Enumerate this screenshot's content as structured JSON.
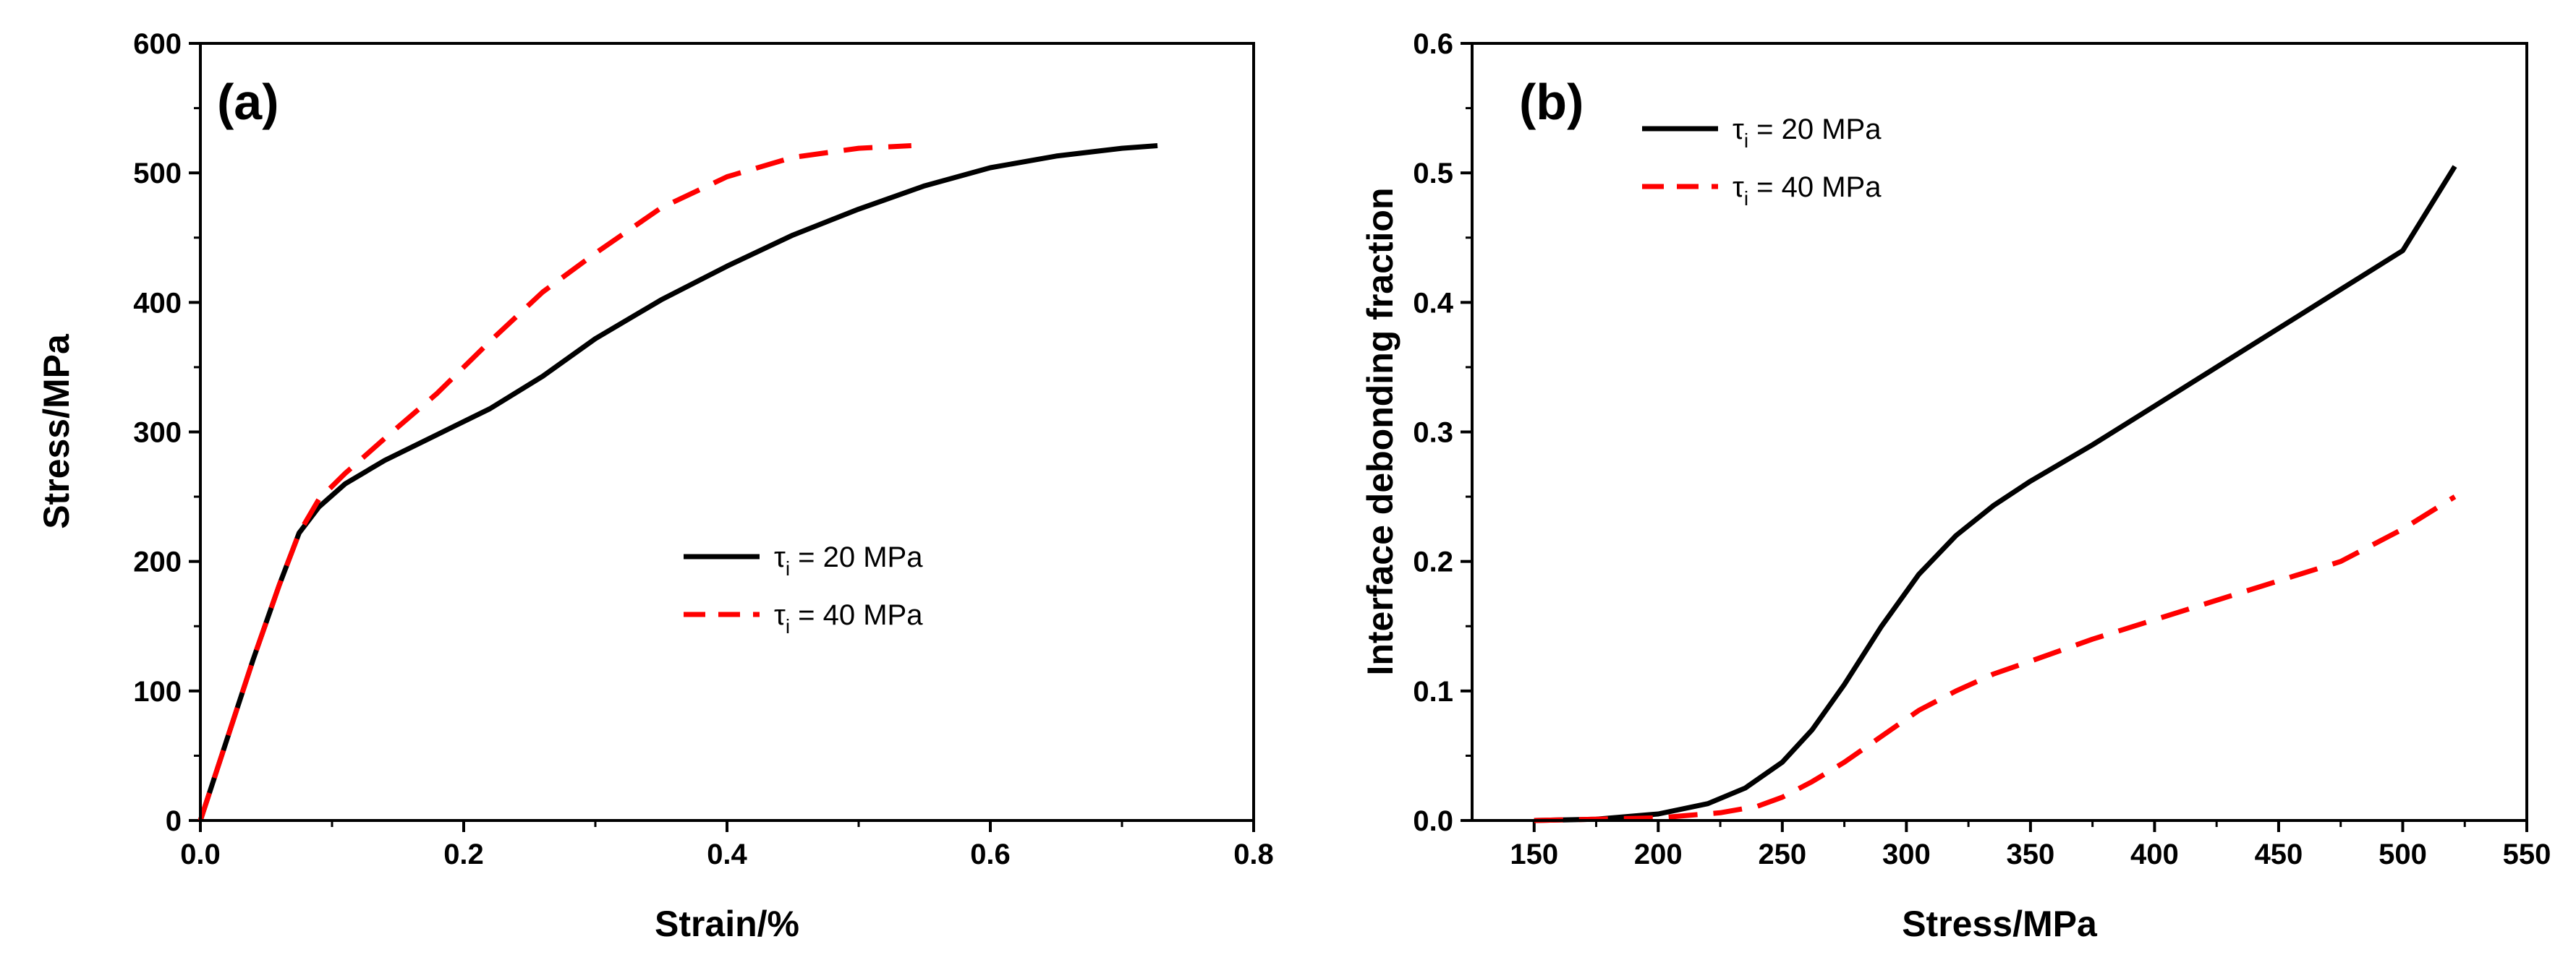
{
  "chart_data": [
    {
      "type": "line",
      "panel_label": "(a)",
      "title": "",
      "xlabel": "Strain/%",
      "ylabel": "Stress/MPa",
      "xlim": [
        0,
        0.8
      ],
      "ylim": [
        0,
        600
      ],
      "x_ticks": [
        0.0,
        0.2,
        0.4,
        0.6,
        0.8
      ],
      "x_tick_labels": [
        "0.0",
        "0.2",
        "0.4",
        "0.6",
        "0.8"
      ],
      "y_ticks": [
        0,
        100,
        200,
        300,
        400,
        500,
        600
      ],
      "y_tick_labels": [
        "0",
        "100",
        "200",
        "300",
        "400",
        "500",
        "600"
      ],
      "legend_position": "center-right",
      "series": [
        {
          "name": "τi = 20 MPa",
          "legend_symbol": "τ",
          "legend_sub": "i",
          "legend_rest": " = 20 MPa",
          "color": "#000000",
          "dash": "solid",
          "x": [
            0,
            0.02,
            0.04,
            0.06,
            0.075,
            0.09,
            0.11,
            0.14,
            0.18,
            0.22,
            0.26,
            0.3,
            0.35,
            0.4,
            0.45,
            0.5,
            0.55,
            0.6,
            0.65,
            0.7,
            0.727
          ],
          "y": [
            0,
            62,
            124,
            182,
            222,
            242,
            260,
            278,
            298,
            318,
            343,
            372,
            402,
            428,
            452,
            472,
            490,
            504,
            513,
            519,
            521
          ]
        },
        {
          "name": "τi = 40 MPa",
          "legend_symbol": "τ",
          "legend_sub": "i",
          "legend_rest": " = 40 MPa",
          "color": "#ff0000",
          "dash": "dashed",
          "x": [
            0,
            0.02,
            0.04,
            0.06,
            0.075,
            0.09,
            0.11,
            0.14,
            0.18,
            0.22,
            0.26,
            0.3,
            0.35,
            0.4,
            0.45,
            0.5,
            0.54
          ],
          "y": [
            0,
            62,
            124,
            182,
            222,
            248,
            268,
            295,
            330,
            370,
            408,
            438,
            473,
            497,
            512,
            519,
            521
          ]
        }
      ]
    },
    {
      "type": "line",
      "panel_label": "(b)",
      "title": "",
      "xlabel": "Stress/MPa",
      "ylabel": "Interface debonding fraction",
      "xlim": [
        125,
        550
      ],
      "ylim": [
        0,
        0.6
      ],
      "x_ticks": [
        150,
        200,
        250,
        300,
        350,
        400,
        450,
        500,
        550
      ],
      "x_tick_labels": [
        "150",
        "200",
        "250",
        "300",
        "350",
        "400",
        "450",
        "500",
        "550"
      ],
      "y_ticks": [
        0,
        0.1,
        0.2,
        0.3,
        0.4,
        0.5,
        0.6
      ],
      "y_tick_labels": [
        "0.0",
        "0.1",
        "0.2",
        "0.3",
        "0.4",
        "0.5",
        "0.6"
      ],
      "legend_position": "top-left",
      "series": [
        {
          "name": "τi = 20 MPa",
          "legend_symbol": "τ",
          "legend_sub": "i",
          "legend_rest": " = 20 MPa",
          "color": "#000000",
          "dash": "solid",
          "x": [
            150,
            175,
            200,
            220,
            235,
            250,
            262,
            275,
            290,
            305,
            320,
            335,
            350,
            375,
            400,
            425,
            450,
            475,
            500,
            521
          ],
          "y": [
            0,
            0.001,
            0.005,
            0.013,
            0.025,
            0.045,
            0.07,
            0.105,
            0.15,
            0.19,
            0.22,
            0.243,
            0.262,
            0.29,
            0.32,
            0.35,
            0.38,
            0.41,
            0.44,
            0.505
          ]
        },
        {
          "name": "τi = 40 MPa",
          "legend_symbol": "τ",
          "legend_sub": "i",
          "legend_rest": " = 40 MPa",
          "color": "#ff0000",
          "dash": "dashed",
          "x": [
            150,
            200,
            225,
            240,
            250,
            262,
            275,
            290,
            305,
            320,
            335,
            350,
            375,
            400,
            425,
            450,
            475,
            500,
            521
          ],
          "y": [
            0,
            0.002,
            0.006,
            0.011,
            0.018,
            0.03,
            0.045,
            0.065,
            0.085,
            0.1,
            0.113,
            0.123,
            0.14,
            0.155,
            0.17,
            0.185,
            0.2,
            0.225,
            0.25
          ]
        }
      ]
    }
  ]
}
